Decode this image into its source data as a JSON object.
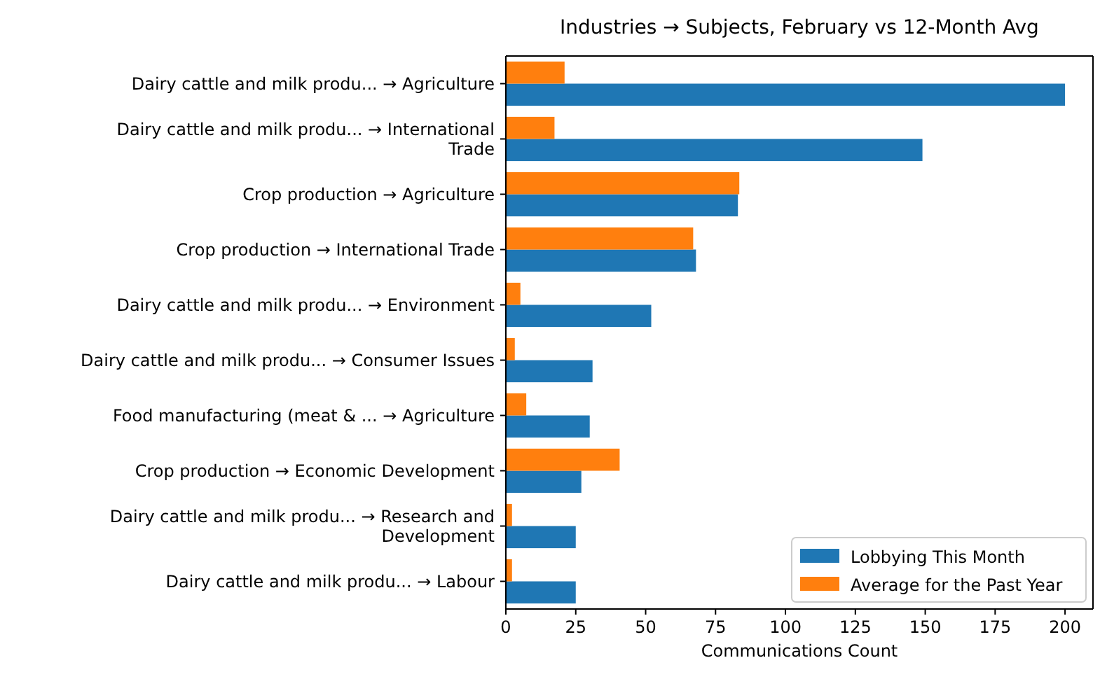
{
  "chart_data": {
    "type": "bar",
    "orientation": "horizontal",
    "title": "Industries → Subjects, February vs 12-Month Avg",
    "xlabel": "Communications Count",
    "categories": [
      "Dairy cattle and milk produ... → Agriculture",
      "Dairy cattle and milk produ... → International\nTrade",
      "Crop production → Agriculture",
      "Crop production → International Trade",
      "Dairy cattle and milk produ... → Environment",
      "Dairy cattle and milk produ... → Consumer Issues",
      "Food manufacturing (meat & ... → Agriculture",
      "Crop production → Economic Development",
      "Dairy cattle and milk produ... → Research and\nDevelopment",
      "Dairy cattle and milk produ... → Labour"
    ],
    "series": [
      {
        "name": "Lobbying This Month",
        "color": "#1f77b4",
        "values": [
          200,
          149,
          83,
          68,
          52,
          31,
          30,
          27,
          25,
          25
        ]
      },
      {
        "name": "Average for the Past Year",
        "color": "#ff7f0e",
        "values": [
          21,
          17.4,
          83.5,
          67,
          5.2,
          3.2,
          7.3,
          40.7,
          2.2,
          2.2
        ]
      }
    ],
    "xlim": [
      0,
      210
    ],
    "xticks": [
      0,
      25,
      50,
      75,
      100,
      125,
      150,
      175,
      200
    ],
    "legend": "bottom right"
  }
}
